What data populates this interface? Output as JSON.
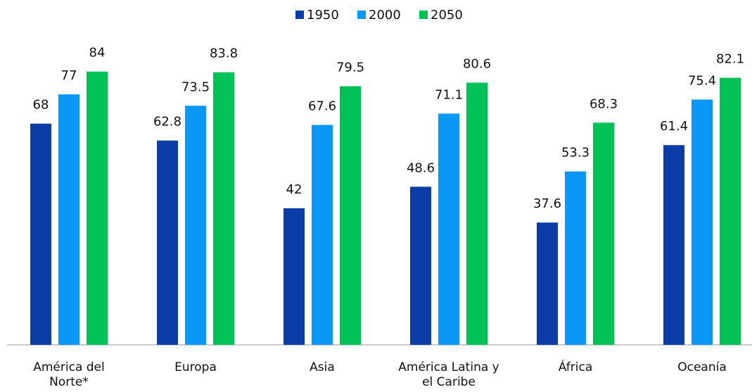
{
  "chart_data": {
    "type": "bar",
    "categories": [
      "América del Norte*",
      "Europa",
      "Asia",
      "América Latina y el Caribe",
      "África",
      "Oceanía"
    ],
    "series": [
      {
        "name": "1950",
        "color": "#0a3ea6",
        "values": [
          68,
          62.8,
          42,
          48.6,
          37.6,
          61.4
        ]
      },
      {
        "name": "2000",
        "color": "#0a97f5",
        "values": [
          77,
          73.5,
          67.6,
          71.1,
          53.3,
          75.4
        ]
      },
      {
        "name": "2050",
        "color": "#00c257",
        "values": [
          84,
          83.8,
          79.5,
          80.6,
          68.3,
          82.1
        ]
      }
    ],
    "ylim": [
      0,
      90
    ],
    "legend": "top"
  }
}
